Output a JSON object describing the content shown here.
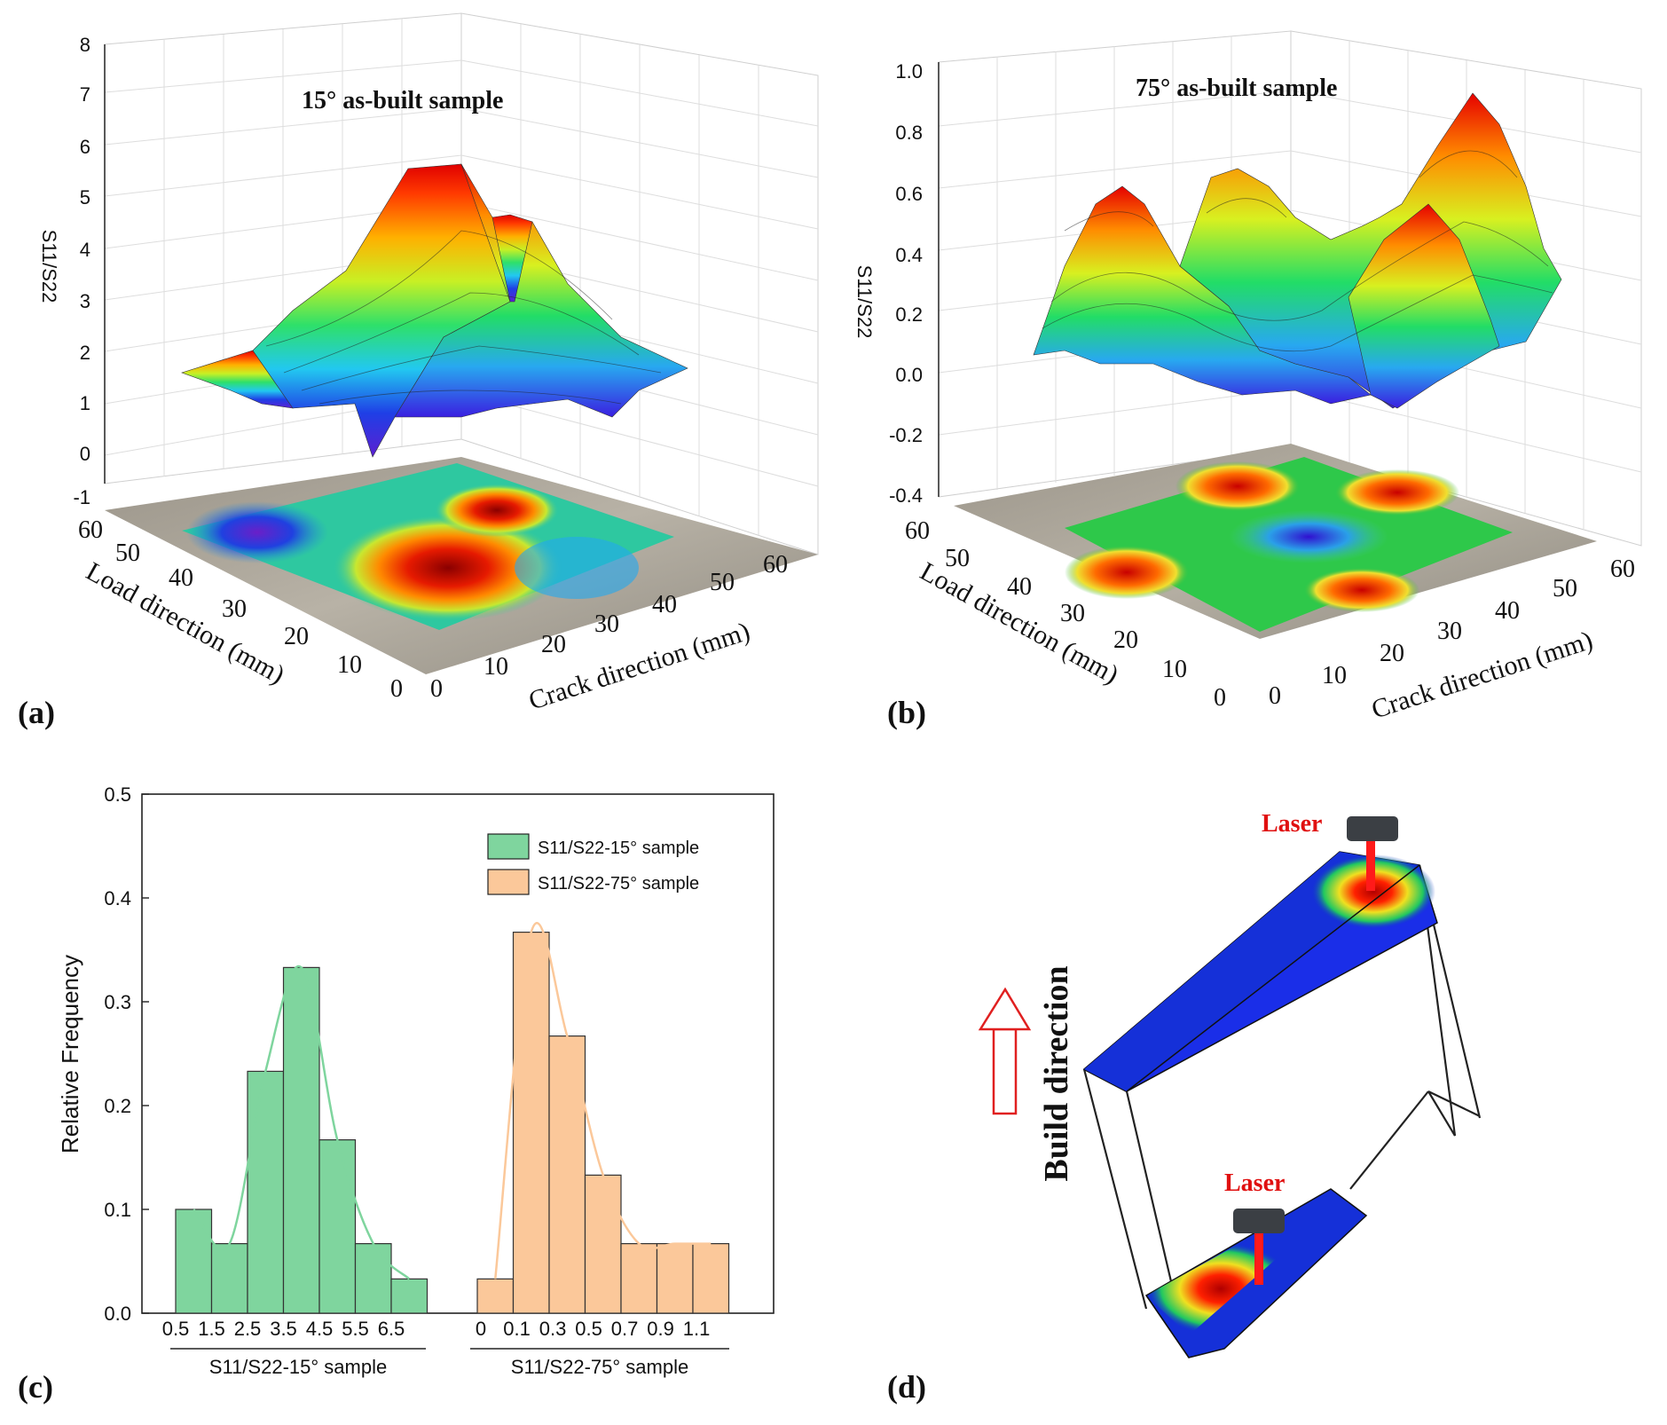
{
  "panels": {
    "a": "(a)",
    "b": "(b)",
    "c": "(c)",
    "d": "(d)"
  },
  "colors": {
    "green_fill": "#7fd59e",
    "green_line": "#7fd59e",
    "orange_fill": "#fbc89a",
    "orange_line": "#fbc89a",
    "laser_red": "#ff1a1a",
    "arrow_red": "#e02020"
  },
  "chart_data": [
    {
      "id": "a",
      "type": "surface3d",
      "title": "15° as-built sample",
      "zlabel": "S11/S22",
      "xlabel": "Crack direction (mm)",
      "ylabel": "Load direction (mm)",
      "zticks": [
        "8",
        "7",
        "6",
        "5",
        "4",
        "3",
        "2",
        "1",
        "0",
        "-1"
      ],
      "xticks": [
        "0",
        "10",
        "20",
        "30",
        "40",
        "50",
        "60"
      ],
      "yticks": [
        "60",
        "50",
        "40",
        "30",
        "20",
        "10",
        "0"
      ],
      "zlim": [
        -1,
        8
      ]
    },
    {
      "id": "b",
      "type": "surface3d",
      "title": "75° as-built sample",
      "zlabel": "S11/S22",
      "xlabel": "Crack direction (mm)",
      "ylabel": "Load direction (mm)",
      "zticks": [
        "1.0",
        "0.8",
        "0.6",
        "0.4",
        "0.2",
        "0.0",
        "-0.2",
        "-0.4"
      ],
      "xticks": [
        "0",
        "10",
        "20",
        "30",
        "40",
        "50",
        "60"
      ],
      "yticks": [
        "60",
        "50",
        "40",
        "30",
        "20",
        "10",
        "0"
      ],
      "zlim": [
        -0.4,
        1.0
      ]
    },
    {
      "id": "c",
      "type": "bar",
      "ylabel": "Relative Frequency",
      "ylim": [
        0.0,
        0.5
      ],
      "yticks": [
        "0.0",
        "0.1",
        "0.2",
        "0.3",
        "0.4",
        "0.5"
      ],
      "series": [
        {
          "name": "S11/S22-15° sample",
          "group_label": "S11/S22-15° sample",
          "tick_labels": [
            "0.5",
            "1.5",
            "2.5",
            "3.5",
            "4.5",
            "5.5",
            "6.5"
          ],
          "values": [
            0.1,
            0.067,
            0.233,
            0.333,
            0.167,
            0.067,
            0.033
          ]
        },
        {
          "name": "S11/S22-75° sample",
          "group_label": "S11/S22-75° sample",
          "tick_labels": [
            "0",
            "0.1",
            "0.3",
            "0.5",
            "0.7",
            "0.9",
            "1.1"
          ],
          "values": [
            0.033,
            0.367,
            0.267,
            0.133,
            0.067,
            0.067,
            0.067
          ]
        }
      ]
    }
  ],
  "diagram_d": {
    "laser_top": "Laser",
    "laser_bottom": "Laser",
    "build_direction": "Build direction"
  }
}
